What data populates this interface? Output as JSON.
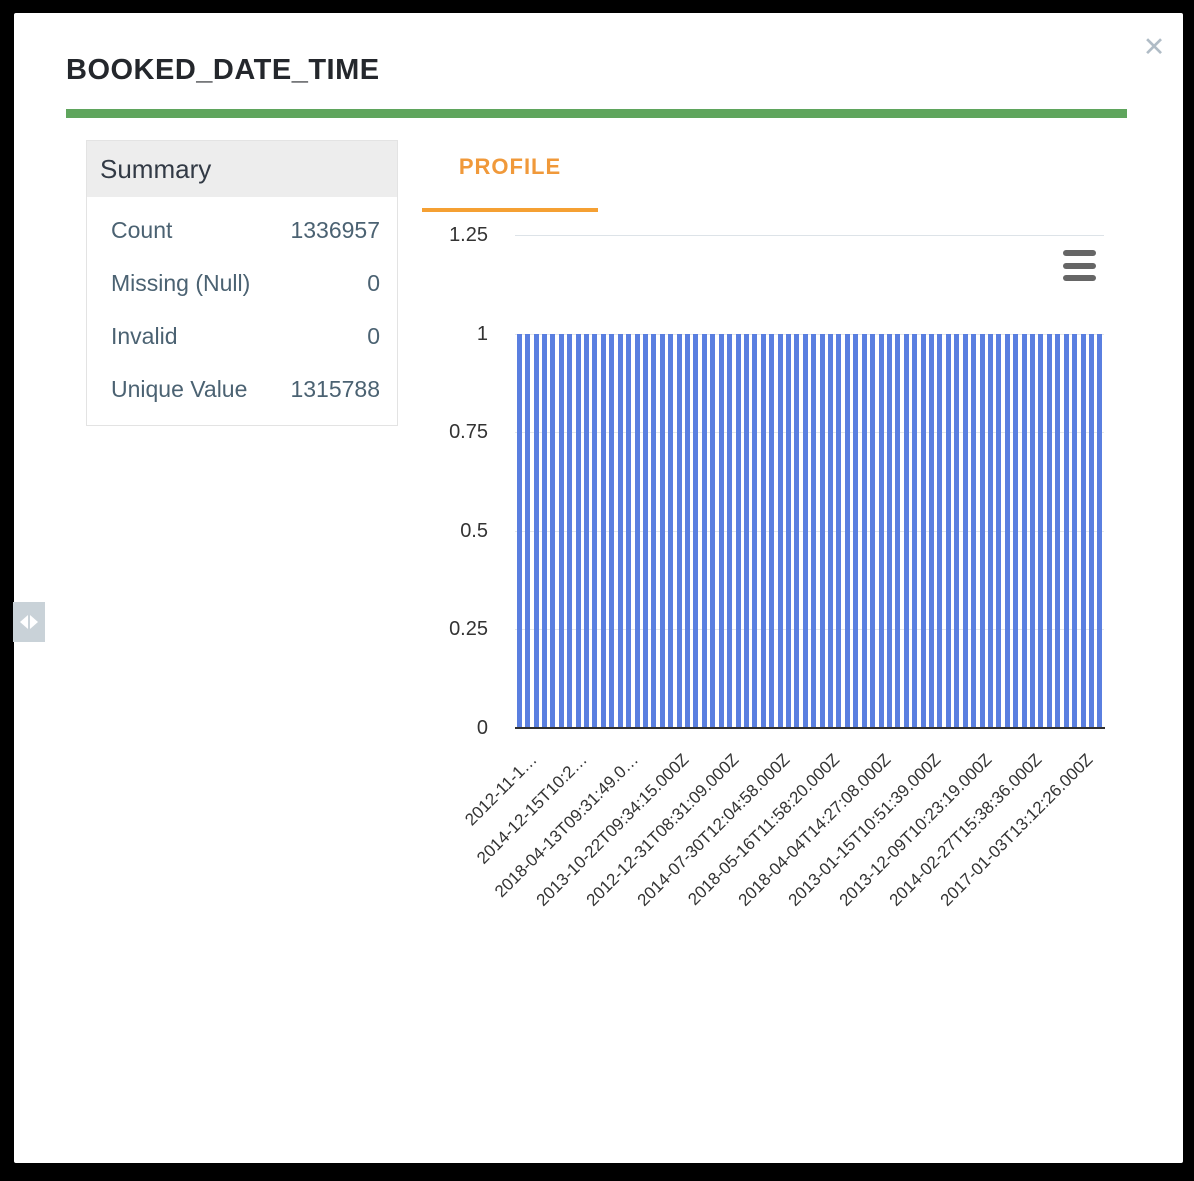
{
  "modal": {
    "title": "BOOKED_DATE_TIME",
    "close_icon_glyph": "✕"
  },
  "summary": {
    "header": "Summary",
    "rows": [
      {
        "label": "Count",
        "value": "1336957"
      },
      {
        "label": "Missing (Null)",
        "value": "0"
      },
      {
        "label": "Invalid",
        "value": "0"
      },
      {
        "label": "Unique Value",
        "value": "1315788"
      }
    ]
  },
  "profile": {
    "tab_label": "PROFILE"
  },
  "chart_data": {
    "type": "bar",
    "title": "",
    "bar_count": 70,
    "uniform_value": 1,
    "ylim": [
      0,
      1.25
    ],
    "yticks": [
      0,
      0.25,
      0.5,
      0.75,
      1,
      1.25
    ],
    "x_label_step": 6,
    "x_tick_labels": [
      "2012-11-1…",
      "2014-12-15T10:2…",
      "2018-04-13T09:31:49.0…",
      "2013-10-22T09:34:15.000Z",
      "2012-12-31T08:31:09.000Z",
      "2014-07-30T12:04:58.000Z",
      "2018-05-16T11:58:20.000Z",
      "2018-04-04T14:27:08.000Z",
      "2013-01-15T10:51:39.000Z",
      "2013-12-09T10:23:19.000Z",
      "2014-02-27T15:38:36.000Z",
      "2017-01-03T13:12:26.000Z"
    ],
    "grid": true,
    "legend": "none",
    "bar_color": "#5a7fe0"
  },
  "colors": {
    "accent_green": "#5fa55d",
    "accent_orange": "#f0993a",
    "bar_blue": "#5a7fe0",
    "summary_text": "#4b6272",
    "backdrop": "#000000"
  },
  "icons": {
    "close": "close-icon",
    "chart_menu": "hamburger-menu-icon",
    "resize": "horizontal-resize-icon"
  }
}
